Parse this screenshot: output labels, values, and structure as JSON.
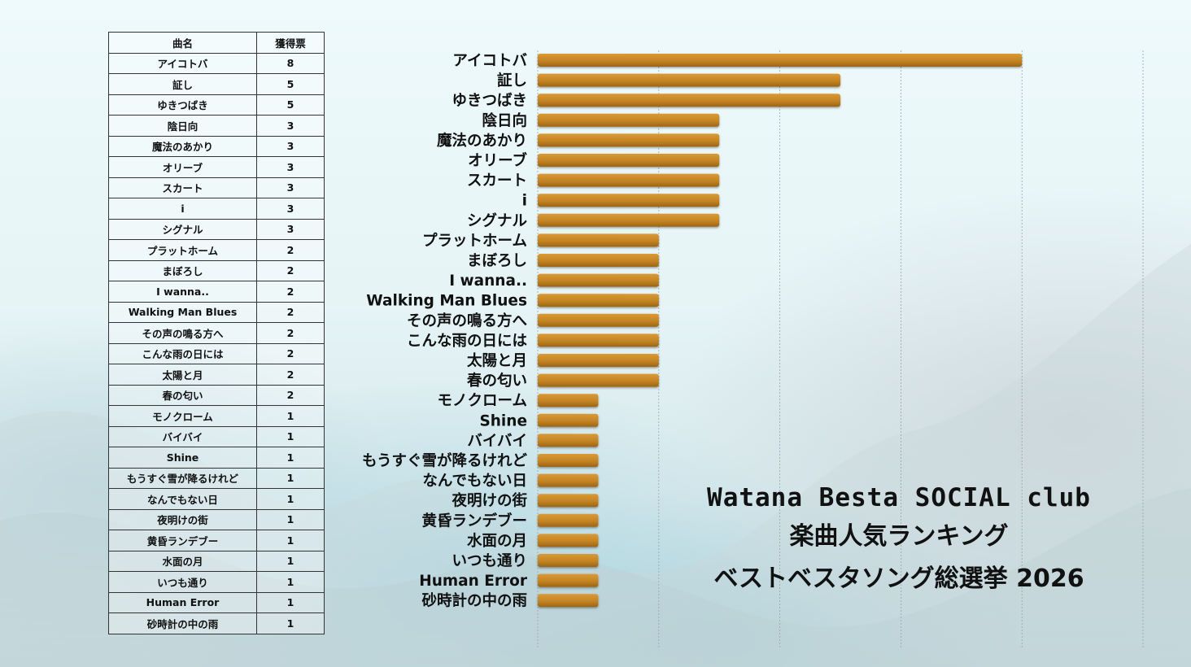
{
  "table": {
    "header_song": "曲名",
    "header_votes": "獲得票"
  },
  "chart_data": {
    "type": "bar",
    "orientation": "horizontal",
    "categories": [
      "アイコトバ",
      "証し",
      "ゆきつばき",
      "陰日向",
      "魔法のあかり",
      "オリーブ",
      "スカート",
      "i",
      "シグナル",
      "プラットホーム",
      "まぼろし",
      "I wanna..",
      "Walking Man Blues",
      "その声の鳴る方へ",
      "こんな雨の日には",
      "太陽と月",
      "春の匂い",
      "モノクローム",
      "Shine",
      "バイバイ",
      "もうすぐ雪が降るけれど",
      "なんでもない日",
      "夜明けの街",
      "黄昏ランデブー",
      "水面の月",
      "いつも通り",
      "Human Error",
      "砂時計の中の雨"
    ],
    "values": [
      8,
      5,
      5,
      3,
      3,
      3,
      3,
      3,
      3,
      2,
      2,
      2,
      2,
      2,
      2,
      2,
      2,
      1,
      1,
      1,
      1,
      1,
      1,
      1,
      1,
      1,
      1,
      1
    ],
    "xlim": [
      0,
      10
    ],
    "grid": true,
    "bar_color": "#c98a26"
  },
  "table_rows": [
    {
      "song": "アイコトバ",
      "votes": "8"
    },
    {
      "song": "証し",
      "votes": "5"
    },
    {
      "song": "ゆきつばき",
      "votes": "5"
    },
    {
      "song": "陰日向",
      "votes": "3"
    },
    {
      "song": "魔法のあかり",
      "votes": "3"
    },
    {
      "song": "オリーブ",
      "votes": "3"
    },
    {
      "song": "スカート",
      "votes": "3"
    },
    {
      "song": "i",
      "votes": "3"
    },
    {
      "song": "シグナル",
      "votes": "3"
    },
    {
      "song": "プラットホーム",
      "votes": "2"
    },
    {
      "song": "まぼろし",
      "votes": "2"
    },
    {
      "song": "I wanna..",
      "votes": "2"
    },
    {
      "song": "Walking Man Blues",
      "votes": "2"
    },
    {
      "song": "その声の鳴る方へ",
      "votes": "2"
    },
    {
      "song": "こんな雨の日には",
      "votes": "2"
    },
    {
      "song": "太陽と月",
      "votes": "2"
    },
    {
      "song": "春の匂い",
      "votes": "2"
    },
    {
      "song": "モノクローム",
      "votes": "1"
    },
    {
      "song": "バイバイ",
      "votes": "1"
    },
    {
      "song": "Shine",
      "votes": "1"
    },
    {
      "song": "もうすぐ雪が降るけれど",
      "votes": "1"
    },
    {
      "song": "なんでもない日",
      "votes": "1"
    },
    {
      "song": "夜明けの街",
      "votes": "1"
    },
    {
      "song": "黄昏ランデブー",
      "votes": "1"
    },
    {
      "song": "水面の月",
      "votes": "1"
    },
    {
      "song": "いつも通り",
      "votes": "1"
    },
    {
      "song": "Human Error",
      "votes": "1"
    },
    {
      "song": "砂時計の中の雨",
      "votes": "1"
    }
  ],
  "title": {
    "line1": "Watana Besta SOCIAL club",
    "line2": "楽曲人気ランキング",
    "line3": "ベストベスタソング総選挙 2026"
  }
}
